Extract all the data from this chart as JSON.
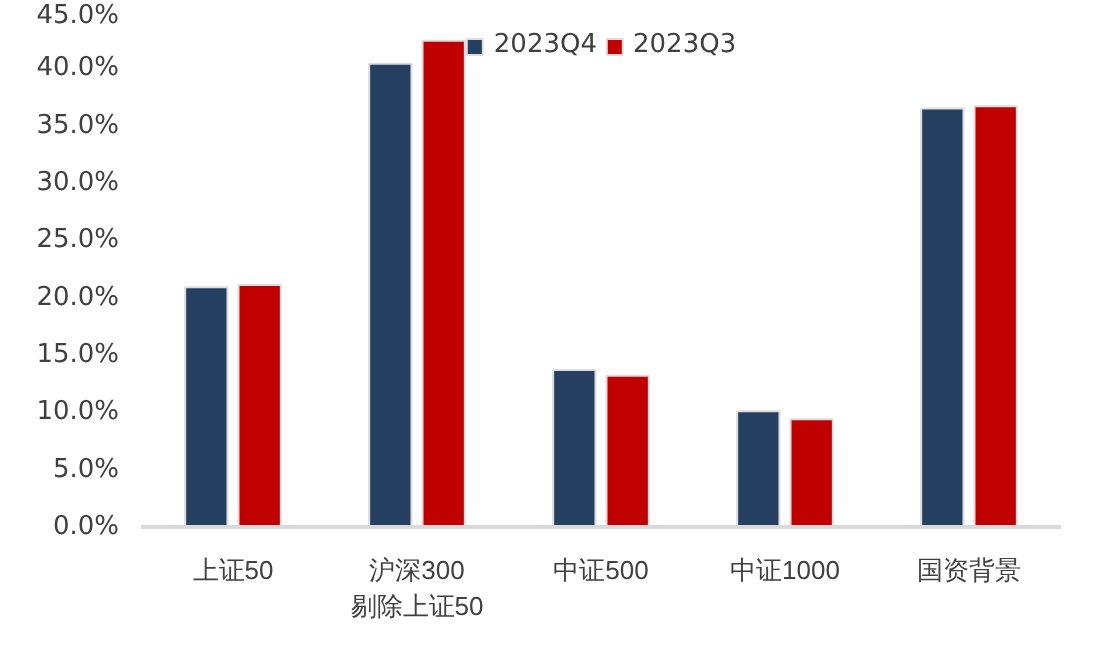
{
  "chart_data": {
    "type": "bar",
    "categories": [
      "上证50",
      "沪深300\n剔除上证50",
      "中证500",
      "中证1000",
      "国资背景"
    ],
    "series": [
      {
        "name": "2023Q4",
        "color": "#243f60",
        "values": [
          20.9,
          40.4,
          13.7,
          10.1,
          36.5
        ]
      },
      {
        "name": "2023Q3",
        "color": "#c00000",
        "values": [
          21.1,
          42.4,
          13.2,
          9.4,
          36.7
        ]
      }
    ],
    "ylim": [
      0,
      45
    ],
    "yticks": [
      {
        "value": 0,
        "label": "0.0%"
      },
      {
        "value": 5,
        "label": "5.0%"
      },
      {
        "value": 10,
        "label": "10.0%"
      },
      {
        "value": 15,
        "label": "15.0%"
      },
      {
        "value": 20,
        "label": "20.0%"
      },
      {
        "value": 25,
        "label": "25.0%"
      },
      {
        "value": 30,
        "label": "30.0%"
      },
      {
        "value": 35,
        "label": "35.0%"
      },
      {
        "value": 40,
        "label": "40.0%"
      },
      {
        "value": 45,
        "label": "45.0%"
      }
    ],
    "grid": false,
    "legend": "top"
  }
}
